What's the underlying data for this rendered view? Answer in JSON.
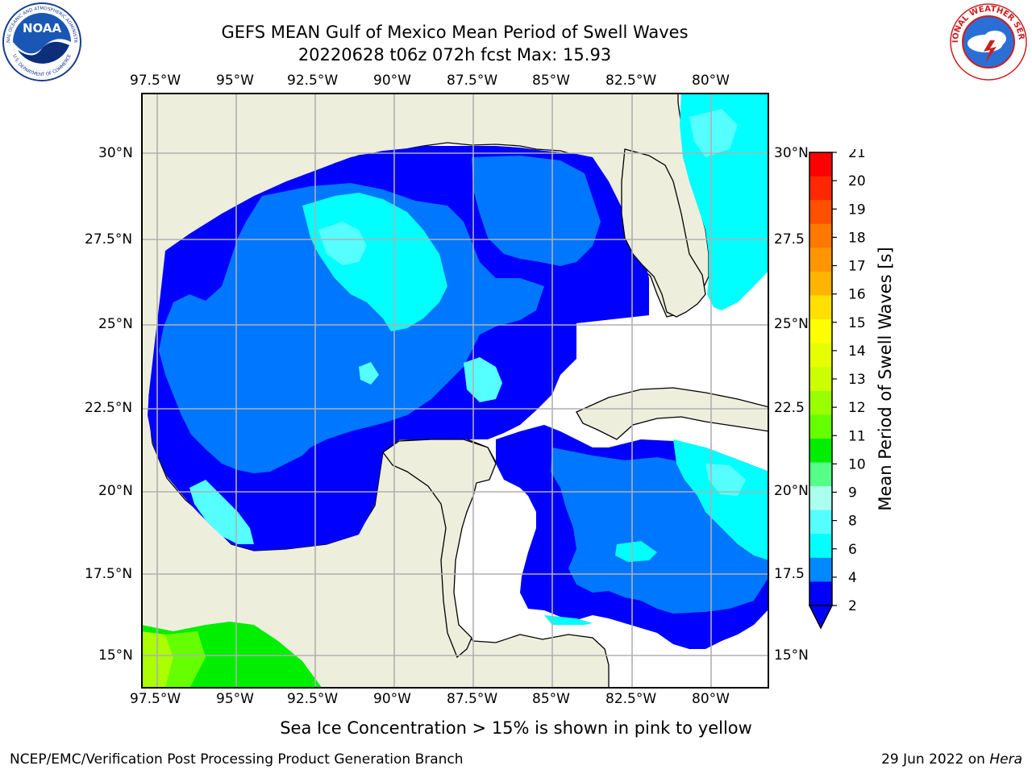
{
  "header": {
    "title_line1": "GEFS MEAN Gulf of Mexico Mean Period of Swell Waves",
    "title_line2": "20220628 t06z 072h fcst   Max: 15.93"
  },
  "logos": {
    "noaa_text": "NOAA",
    "noaa_ring_text": "NATIONAL OCEANIC AND ATMOSPHERIC ADMINISTRATION",
    "noaa_ring_text_bottom": "U.S. DEPARTMENT OF COMMERCE",
    "nws_ring_text": "NATIONAL WEATHER SERVICE"
  },
  "map": {
    "lon_ticks": [
      "97.5°W",
      "95°W",
      "92.5°W",
      "90°W",
      "87.5°W",
      "85°W",
      "82.5°W",
      "80°W"
    ],
    "lat_ticks_left": [
      "30°N",
      "27.5°N",
      "25°N",
      "22.5°N",
      "20°N",
      "17.5°N",
      "15°N"
    ],
    "lat_ticks_right": [
      "30°N",
      "27.5",
      "25°N",
      "22.5",
      "20°N",
      "17.5",
      "15°N"
    ],
    "colors": {
      "land": "#eeeedd",
      "ocean_missing": "#ffffff",
      "grid": "#b0b0b0"
    }
  },
  "colorbar": {
    "label": "Mean Period of Swell Waves [s]",
    "ticks": [
      "21",
      "20",
      "19",
      "18",
      "17",
      "16",
      "15",
      "14",
      "13",
      "12",
      "11",
      "10",
      "9",
      "8",
      "6",
      "4",
      "2"
    ],
    "colors": [
      "#ff0000",
      "#ff2800",
      "#ff5000",
      "#ff7800",
      "#ff9600",
      "#ffb400",
      "#ffe000",
      "#ffff00",
      "#e6ff00",
      "#ccff00",
      "#99ff00",
      "#66ff00",
      "#00ee00",
      "#55ff88",
      "#aaffee",
      "#55ffff",
      "#00ffff",
      "#0088ff",
      "#0000ff"
    ],
    "extend_color": "#0000ff"
  },
  "notes": {
    "sea_ice": "Sea Ice Concentration > 15% is shown in pink to yellow"
  },
  "footer": {
    "left": "NCEP/EMC/Verification Post Processing Product Generation Branch",
    "right_date": "29 Jun 2022 on ",
    "right_host": "Hera"
  }
}
